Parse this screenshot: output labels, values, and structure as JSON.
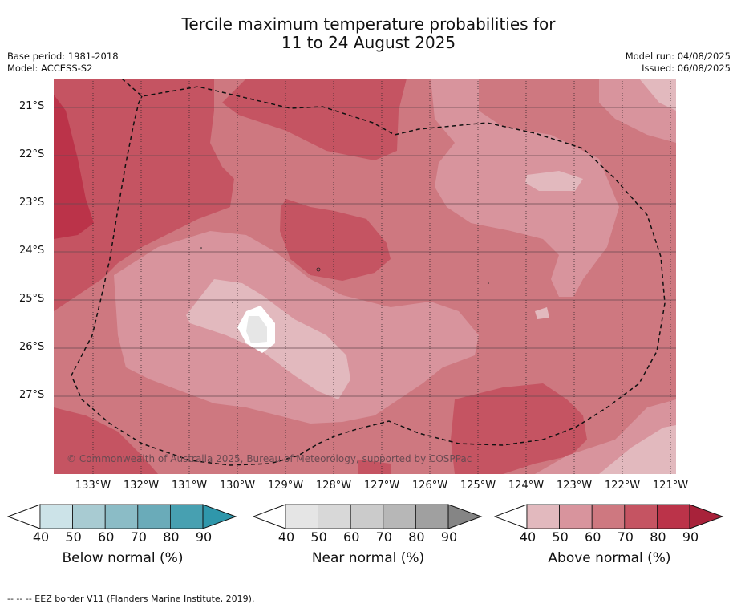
{
  "title_line1": "Tercile maximum temperature probabilities for",
  "title_line2": "11 to 24 August 2025",
  "base_period": "Base period: 1981-2018",
  "model": "Model: ACCESS-S2",
  "model_run": "Model run: 04/08/2025",
  "issued": "Issued: 06/08/2025",
  "lat_labels": [
    "21°S",
    "22°S",
    "23°S",
    "24°S",
    "25°S",
    "26°S",
    "27°S"
  ],
  "lon_labels": [
    "133°W",
    "132°W",
    "131°W",
    "130°W",
    "129°W",
    "128°W",
    "127°W",
    "126°W",
    "125°W",
    "124°W",
    "123°W",
    "122°W",
    "121°W"
  ],
  "copyright": "© Commonwealth of Australia 2025, Bureau of Meteorology, supported by COSPPac",
  "colorbars": [
    {
      "title": "Below normal (%)",
      "ticks": [
        "40",
        "50",
        "60",
        "70",
        "80",
        "90"
      ],
      "colors": [
        "#cce3e8",
        "#a8cbd2",
        "#8bbcc6",
        "#6aabb9",
        "#47a0b1",
        "#2f97ab"
      ]
    },
    {
      "title": "Near normal (%)",
      "ticks": [
        "40",
        "50",
        "60",
        "70",
        "80",
        "90"
      ],
      "colors": [
        "#e5e5e5",
        "#d8d8d8",
        "#cbcbcb",
        "#b7b7b7",
        "#a0a0a0",
        "#858585"
      ]
    },
    {
      "title": "Above normal (%)",
      "ticks": [
        "40",
        "50",
        "60",
        "70",
        "80",
        "90"
      ],
      "colors": [
        "#e2b9be",
        "#d8949d",
        "#ce7880",
        "#c55462",
        "#bb3349",
        "#a8223a"
      ]
    }
  ],
  "footnote": "--  --  -- EEZ border V11 (Flanders Marine Institute, 2019)."
}
